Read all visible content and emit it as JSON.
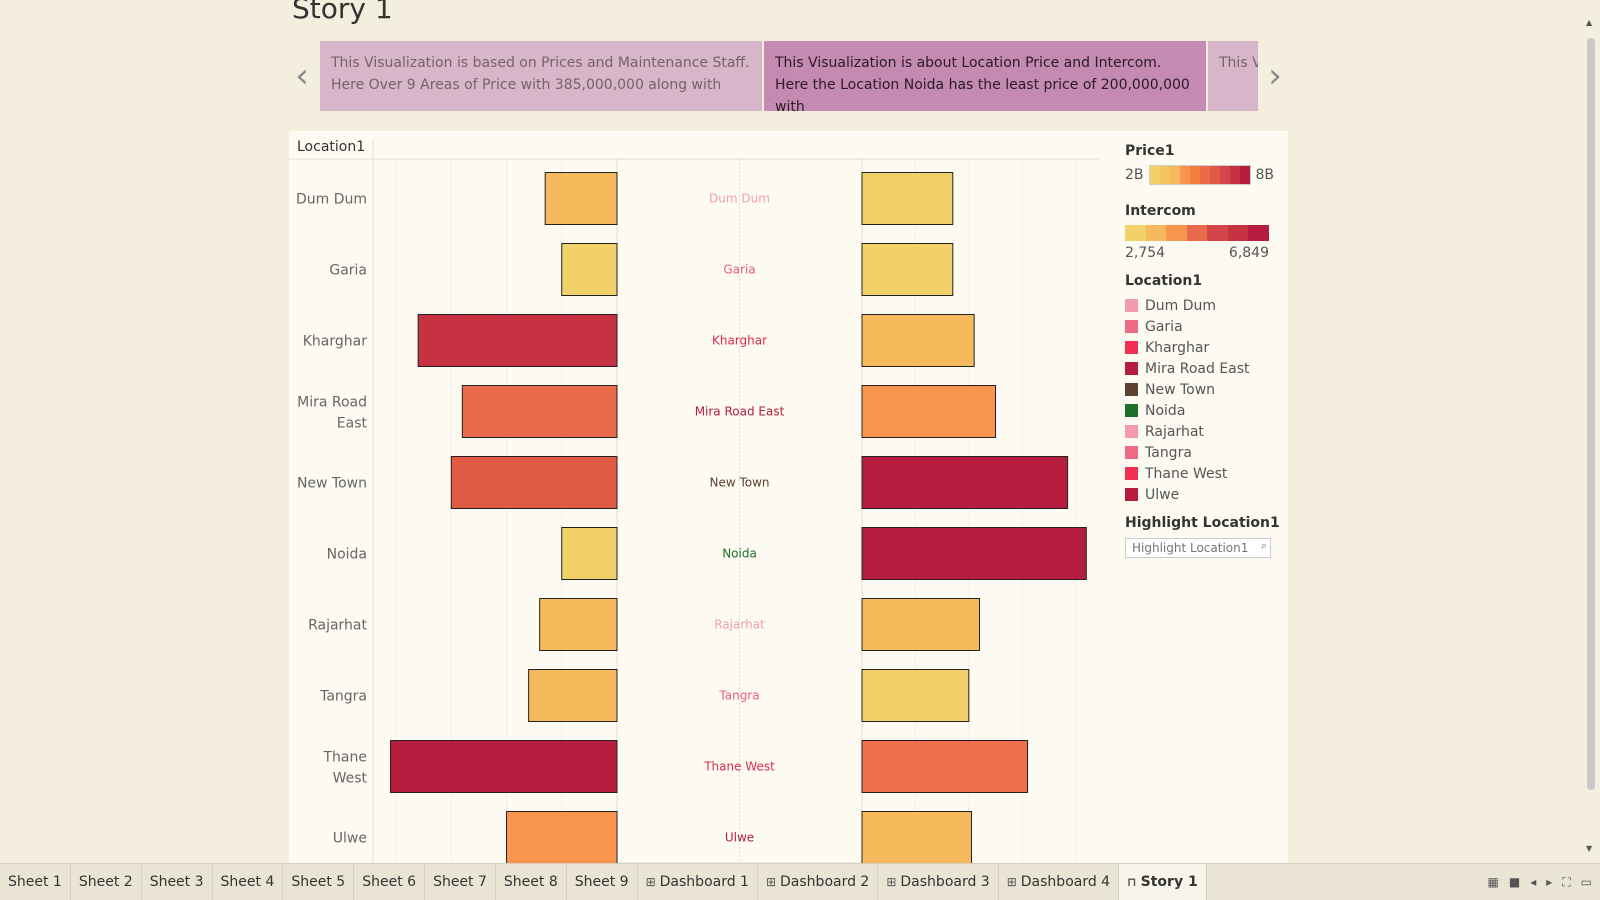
{
  "story": {
    "title": "Story 1",
    "captions": [
      {
        "text": "This Visualization is based on Prices and Maintenance Staff. Here Over 9 Areas of Price with 385,000,000 along with"
      },
      {
        "text": "This Visualization is about Location Price and Intercom. Here the Location Noida has the least price of 200,000,000 with"
      },
      {
        "text": "This V Value"
      }
    ]
  },
  "chart_data": {
    "type": "bar",
    "row_header": "Location1",
    "categories": [
      "Dum Dum",
      "Garia",
      "Kharghar",
      "Mira Road East",
      "New Town",
      "Noida",
      "Rajarhat",
      "Tangra",
      "Thane West",
      "Ulwe"
    ],
    "category_label_lines": [
      [
        "Dum Dum"
      ],
      [
        "Garia"
      ],
      [
        "Kharghar"
      ],
      [
        "Mira Road",
        "East"
      ],
      [
        "New Town"
      ],
      [
        "Noida"
      ],
      [
        "Rajarhat"
      ],
      [
        "Tangra"
      ],
      [
        "Thane",
        "West"
      ],
      [
        "Ulwe"
      ]
    ],
    "series": [
      {
        "values": [
          1.3,
          1.0,
          3.6,
          2.8,
          3.0,
          1.0,
          1.4,
          1.6,
          4.1,
          2.0
        ],
        "colors": [
          "#f6b95b",
          "#f2d16a",
          "#c73242",
          "#ea6b4b",
          "#e15a46",
          "#f2d16a",
          "#f6b95b",
          "#f6b95b",
          "#b51c3e",
          "#fa9550"
        ]
      },
      {
        "values": [
          1.7,
          1.7,
          2.1,
          2.5,
          3.85,
          4.2,
          2.2,
          2.0,
          3.1,
          2.05
        ],
        "colors": [
          "#f2d16a",
          "#f2d16a",
          "#f6b95b",
          "#fa9550",
          "#b51c3e",
          "#b51c3e",
          "#f6b95b",
          "#f2d16a",
          "#ee6f4c",
          "#f6b95b"
        ]
      }
    ],
    "center_label_colors": [
      "#f0a0b0",
      "#e8607a",
      "#e02b4d",
      "#b0203c",
      "#5c4030",
      "#1f6e2a",
      "#f0a0b0",
      "#e8607a",
      "#e02b4d",
      "#b0203c"
    ],
    "grid": true
  },
  "legend": {
    "price": {
      "title": "Price1",
      "min": "2B",
      "max": "8B",
      "colors": [
        "#f2d16a",
        "#f6c461",
        "#f6b95b",
        "#fa9550",
        "#f2803f",
        "#ea6b4b",
        "#e15a46",
        "#d4444b",
        "#c73242",
        "#b51c3e"
      ]
    },
    "intercom": {
      "title": "Intercom",
      "min": "2,754",
      "max": "6,849",
      "colors": [
        "#f2d16a",
        "#f6b95b",
        "#fa9550",
        "#ea6b4b",
        "#d4444b",
        "#c73242",
        "#b51c3e"
      ]
    },
    "location": {
      "title": "Location1",
      "items": [
        {
          "label": "Dum Dum",
          "color": "#f49aad"
        },
        {
          "label": "Garia",
          "color": "#ee6a85"
        },
        {
          "label": "Kharghar",
          "color": "#f02f52"
        },
        {
          "label": "Mira Road East",
          "color": "#b51c3e"
        },
        {
          "label": "New Town",
          "color": "#5c4030"
        },
        {
          "label": "Noida",
          "color": "#1f6e2a"
        },
        {
          "label": "Rajarhat",
          "color": "#f49aad"
        },
        {
          "label": "Tangra",
          "color": "#ee6a85"
        },
        {
          "label": "Thane West",
          "color": "#f02f52"
        },
        {
          "label": "Ulwe",
          "color": "#b51c3e"
        }
      ]
    },
    "highlight": {
      "title": "Highlight Location1",
      "placeholder": "Highlight Location1"
    }
  },
  "tabs": [
    {
      "label": "Sheet 1",
      "icon": ""
    },
    {
      "label": "Sheet 2",
      "icon": ""
    },
    {
      "label": "Sheet 3",
      "icon": ""
    },
    {
      "label": "Sheet 4",
      "icon": ""
    },
    {
      "label": "Sheet 5",
      "icon": ""
    },
    {
      "label": "Sheet 6",
      "icon": ""
    },
    {
      "label": "Sheet 7",
      "icon": ""
    },
    {
      "label": "Sheet 8",
      "icon": ""
    },
    {
      "label": "Sheet 9",
      "icon": ""
    },
    {
      "label": "Dashboard 1",
      "icon": "grid-icon"
    },
    {
      "label": "Dashboard 2",
      "icon": "grid-icon"
    },
    {
      "label": "Dashboard 3",
      "icon": "grid-icon"
    },
    {
      "label": "Dashboard 4",
      "icon": "grid-icon"
    },
    {
      "label": "Story 1",
      "icon": "book-icon",
      "active": true
    }
  ]
}
